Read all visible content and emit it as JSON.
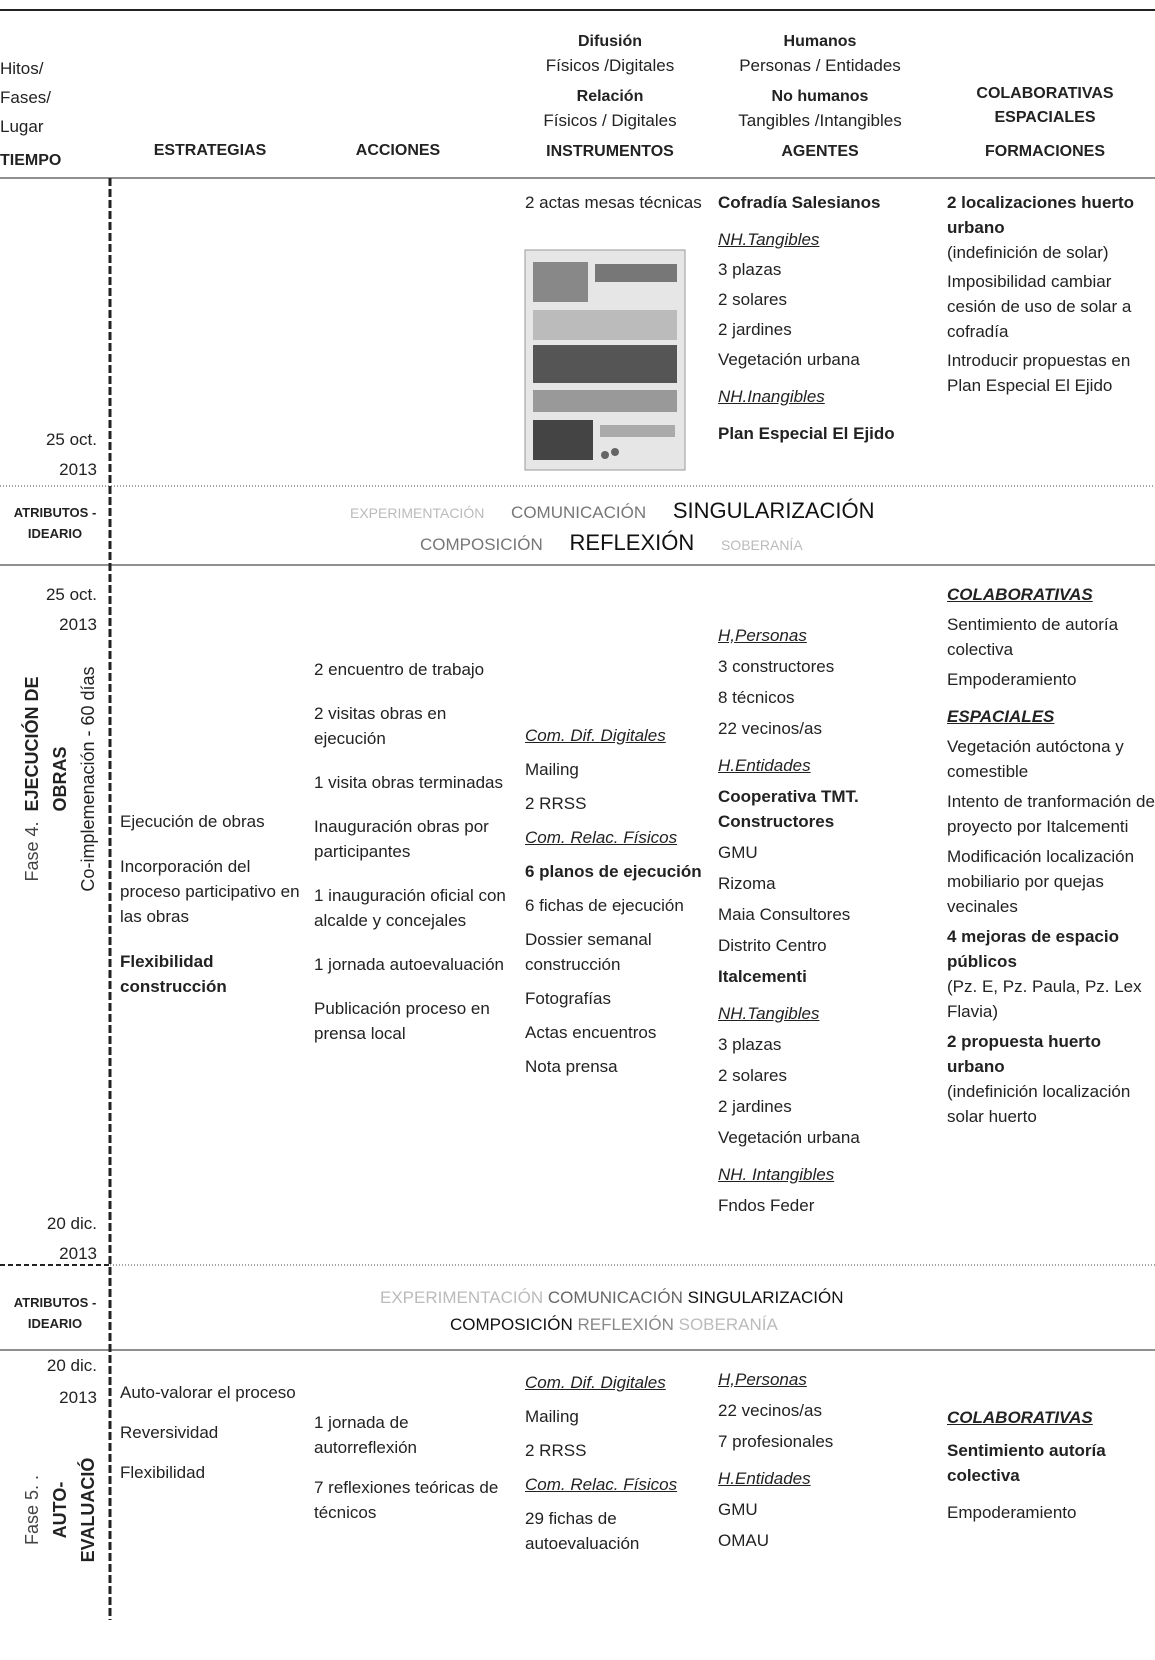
{
  "header": {
    "time": [
      "Hitos/",
      "Fases/",
      "Lugar",
      "TIEMPO"
    ],
    "strategies": "ESTRATEGIAS",
    "actions": "ACCIONES",
    "instruments": [
      "Difusión",
      "Físicos /Digitales",
      "Relación",
      "Físicos / Digitales",
      "INSTRUMENTOS"
    ],
    "agents": [
      "Humanos",
      "Personas / Entidades",
      "No humanos",
      "Tangibles /Intangibles",
      "AGENTES"
    ],
    "formations": [
      "COLABORATIVAS",
      "ESPACIALES",
      "FORMACIONES"
    ]
  },
  "rows": [
    {
      "time": [
        "25 oct.",
        "2013"
      ],
      "instruments": [
        "2 actas mesas técnicas"
      ],
      "agents": [
        "Cofradía Salesianos",
        "NH.Tangibles",
        "3 plazas",
        "2 solares",
        "2 jardines",
        "Vegetación urbana",
        "NH.Inangibles",
        "Plan Especial El Ejido"
      ],
      "formations": [
        "2 localizaciones huerto urbano",
        "(indefinición de solar)",
        "Imposibilidad cambiar cesión de uso de solar a cofradía",
        "Introducir propuestas en Plan Especial El Ejido"
      ]
    },
    {
      "label": [
        "ATRIBUTOS -",
        "IDEARIO"
      ],
      "words": [
        "EXPERIMENTACIÓN",
        "COMUNICACIÓN",
        "SINGULARIZACIÓN",
        "COMPOSICIÓN",
        "REFLEXIÓN",
        "SOBERANÍA"
      ]
    },
    {
      "time_start": [
        "25 oct.",
        "2013"
      ],
      "time_end": [
        "20 dic.",
        "2013"
      ],
      "phase": [
        "Fase 4.",
        "EJECUCIÓN DE",
        "OBRAS",
        "Co-implemenación - 60 días"
      ],
      "strategies": [
        "Ejecución de obras",
        "Incorporación del proceso participativo en las obras",
        "Flexibilidad construcción"
      ],
      "actions": [
        "2 encuentro de trabajo",
        "2 visitas obras en ejecución",
        "1 visita obras terminadas",
        "Inauguración obras por participantes",
        "1 inauguración oficial con alcalde y concejales",
        "1 jornada autoevaluación",
        "Publicación proceso en prensa local"
      ],
      "instruments": [
        "Com. Dif. Digitales",
        "Mailing",
        "2 RRSS",
        "Com. Relac. Físicos",
        "6 planos de ejecución",
        "6 fichas de ejecución",
        "Dossier semanal construcción",
        "Fotografías",
        "Actas encuentros",
        "Nota prensa"
      ],
      "agents": [
        "H,Personas",
        "3 constructores",
        "8 técnicos",
        "22 vecinos/as",
        "H.Entidades",
        "Cooperativa TMT. Constructores",
        "GMU",
        "Rizoma",
        "Maia Consultores",
        "Distrito Centro",
        "Italcementi",
        "NH.Tangibles",
        "3 plazas",
        "2 solares",
        "2 jardines",
        "Vegetación urbana",
        "NH. Intangibles",
        "Fndos Feder"
      ],
      "formations": [
        "COLABORATIVAS",
        "Sentimiento de autoría colectiva",
        "Empoderamiento",
        "ESPACIALES",
        "Vegetación autóctona y comestible",
        "Intento de tranformación de proyecto por Italcementi",
        "Modificación localización mobiliario por quejas vecinales",
        "4 mejoras de espacio públicos",
        "(Pz. E, Pz. Paula, Pz. Lex Flavia)",
        "2 propuesta huerto urbano",
        "(indefinición localización solar huerto"
      ]
    },
    {
      "label": [
        "ATRIBUTOS -",
        "IDEARIO"
      ],
      "words": [
        "EXPERIMENTACIÓN",
        "COMUNICACIÓN",
        "SINGULARIZACIÓN",
        "COMPOSICIÓN",
        "REFLEXIÓN",
        "SOBERANÍA"
      ]
    },
    {
      "time_start": [
        "20 dic.",
        "2013"
      ],
      "phase": [
        "Fase 5. .",
        "AUTO-",
        "EVALUACIÓ"
      ],
      "strategies": [
        "Auto-valorar el proceso",
        "Reversividad",
        "Flexibilidad"
      ],
      "actions": [
        "1 jornada de autorreflexión",
        "7 reflexiones teóricas de técnicos"
      ],
      "instruments": [
        "Com. Dif. Digitales",
        "Mailing",
        "2 RRSS",
        "Com. Relac. Físicos",
        "29 fichas de autoevaluación"
      ],
      "agents": [
        "H,Personas",
        "22 vecinos/as",
        "7 profesionales",
        "H.Entidades",
        "GMU",
        "OMAU"
      ],
      "formations": [
        "COLABORATIVAS",
        "Sentimiento autoría colectiva",
        "Empoderamiento"
      ]
    }
  ]
}
